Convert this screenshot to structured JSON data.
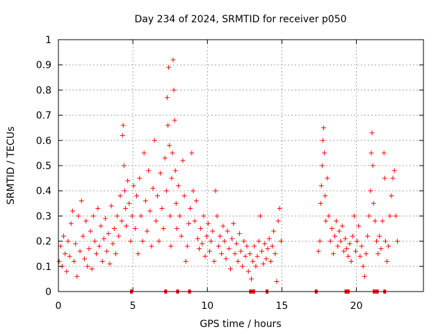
{
  "chart_data": {
    "type": "scatter",
    "title": "Day 234 of 2024, SRMTID for receiver p050",
    "xlabel": "GPS time / hours",
    "ylabel": "SRMTID / TECUs",
    "xlim": [
      0,
      24.5
    ],
    "ylim": [
      0,
      1
    ],
    "x_ticks": [
      0,
      5,
      10,
      15,
      20
    ],
    "x_tick_labels": [
      "0",
      "5",
      "10",
      "15",
      "20"
    ],
    "y_ticks": [
      0,
      0.1,
      0.2,
      0.3,
      0.4,
      0.5,
      0.6,
      0.7,
      0.8,
      0.9,
      1
    ],
    "y_tick_labels": [
      "0",
      "0.1",
      "0.2",
      "0.3",
      "0.4",
      "0.5",
      "0.6",
      "0.7",
      "0.8",
      "0.9",
      "1"
    ],
    "grid": true,
    "marker_color": "#ff0000",
    "series": [
      {
        "name": "SRMTID",
        "marker": "+",
        "points": [
          [
            0.05,
            0.12
          ],
          [
            0.15,
            0.18
          ],
          [
            0.25,
            0.1
          ],
          [
            0.35,
            0.22
          ],
          [
            0.45,
            0.15
          ],
          [
            0.55,
            0.08
          ],
          [
            0.65,
            0.2
          ],
          [
            0.75,
            0.14
          ],
          [
            0.85,
            0.27
          ],
          [
            0.95,
            0.32
          ],
          [
            1.05,
            0.12
          ],
          [
            1.15,
            0.19
          ],
          [
            1.25,
            0.06
          ],
          [
            1.35,
            0.3
          ],
          [
            1.45,
            0.16
          ],
          [
            1.55,
            0.36
          ],
          [
            1.65,
            0.22
          ],
          [
            1.75,
            0.13
          ],
          [
            1.85,
            0.28
          ],
          [
            1.95,
            0.1
          ],
          [
            2.05,
            0.17
          ],
          [
            2.15,
            0.24
          ],
          [
            2.25,
            0.09
          ],
          [
            2.35,
            0.3
          ],
          [
            2.45,
            0.2
          ],
          [
            2.55,
            0.15
          ],
          [
            2.65,
            0.33
          ],
          [
            2.75,
            0.18
          ],
          [
            2.85,
            0.26
          ],
          [
            2.95,
            0.12
          ],
          [
            3.05,
            0.21
          ],
          [
            3.15,
            0.29
          ],
          [
            3.25,
            0.16
          ],
          [
            3.35,
            0.23
          ],
          [
            3.45,
            0.11
          ],
          [
            3.55,
            0.34
          ],
          [
            3.65,
            0.19
          ],
          [
            3.75,
            0.25
          ],
          [
            3.85,
            0.15
          ],
          [
            3.95,
            0.3
          ],
          [
            4.05,
            0.22
          ],
          [
            4.15,
            0.38
          ],
          [
            4.25,
            0.28
          ],
          [
            4.3,
            0.62
          ],
          [
            4.35,
            0.66
          ],
          [
            4.4,
            0.5
          ],
          [
            4.45,
            0.4
          ],
          [
            4.5,
            0.33
          ],
          [
            4.55,
            0.26
          ],
          [
            4.65,
            0.44
          ],
          [
            4.75,
            0.35
          ],
          [
            4.85,
            0.2
          ],
          [
            4.95,
            0.3
          ],
          [
            5.05,
            0.42
          ],
          [
            5.15,
            0.25
          ],
          [
            5.25,
            0.38
          ],
          [
            5.35,
            0.15
          ],
          [
            5.45,
            0.45
          ],
          [
            5.55,
            0.3
          ],
          [
            5.65,
            0.2
          ],
          [
            5.75,
            0.55
          ],
          [
            5.85,
            0.36
          ],
          [
            5.95,
            0.24
          ],
          [
            6.05,
            0.48
          ],
          [
            6.15,
            0.32
          ],
          [
            6.25,
            0.18
          ],
          [
            6.35,
            0.41
          ],
          [
            6.45,
            0.6
          ],
          [
            6.55,
            0.28
          ],
          [
            6.65,
            0.38
          ],
          [
            6.75,
            0.2
          ],
          [
            6.85,
            0.47
          ],
          [
            6.95,
            0.33
          ],
          [
            7.05,
            0.25
          ],
          [
            7.15,
            0.53
          ],
          [
            7.25,
            0.4
          ],
          [
            7.3,
            0.77
          ],
          [
            7.35,
            0.66
          ],
          [
            7.4,
            0.89
          ],
          [
            7.45,
            0.58
          ],
          [
            7.5,
            0.3
          ],
          [
            7.55,
            0.18
          ],
          [
            7.6,
            0.45
          ],
          [
            7.65,
            0.55
          ],
          [
            7.7,
            0.92
          ],
          [
            7.75,
            0.8
          ],
          [
            7.8,
            0.68
          ],
          [
            7.85,
            0.48
          ],
          [
            7.9,
            0.35
          ],
          [
            7.95,
            0.25
          ],
          [
            8.05,
            0.42
          ],
          [
            8.15,
            0.3
          ],
          [
            8.25,
            0.22
          ],
          [
            8.35,
            0.52
          ],
          [
            8.45,
            0.38
          ],
          [
            8.55,
            0.12
          ],
          [
            8.65,
            0.18
          ],
          [
            8.75,
            0.27
          ],
          [
            8.85,
            0.33
          ],
          [
            8.95,
            0.55
          ],
          [
            9.05,
            0.4
          ],
          [
            9.15,
            0.28
          ],
          [
            9.25,
            0.36
          ],
          [
            9.35,
            0.21
          ],
          [
            9.45,
            0.17
          ],
          [
            9.55,
            0.25
          ],
          [
            9.65,
            0.19
          ],
          [
            9.75,
            0.3
          ],
          [
            9.85,
            0.14
          ],
          [
            9.95,
            0.22
          ],
          [
            10.05,
            0.27
          ],
          [
            10.15,
            0.16
          ],
          [
            10.25,
            0.2
          ],
          [
            10.35,
            0.24
          ],
          [
            10.45,
            0.12
          ],
          [
            10.55,
            0.4
          ],
          [
            10.65,
            0.3
          ],
          [
            10.75,
            0.18
          ],
          [
            10.85,
            0.22
          ],
          [
            10.95,
            0.15
          ],
          [
            11.05,
            0.26
          ],
          [
            11.15,
            0.2
          ],
          [
            11.25,
            0.13
          ],
          [
            11.35,
            0.24
          ],
          [
            11.45,
            0.17
          ],
          [
            11.55,
            0.09
          ],
          [
            11.65,
            0.21
          ],
          [
            11.75,
            0.27
          ],
          [
            11.85,
            0.15
          ],
          [
            11.95,
            0.19
          ],
          [
            12.05,
            0.12
          ],
          [
            12.15,
            0.23
          ],
          [
            12.25,
            0.16
          ],
          [
            12.35,
            0.1
          ],
          [
            12.45,
            0.2
          ],
          [
            12.55,
            0.14
          ],
          [
            12.65,
            0.18
          ],
          [
            12.75,
            0.08
          ],
          [
            12.85,
            0.15
          ],
          [
            12.95,
            0.05
          ],
          [
            13.05,
            0.12
          ],
          [
            13.15,
            0.18
          ],
          [
            13.25,
            0.1
          ],
          [
            13.35,
            0.14
          ],
          [
            13.45,
            0.2
          ],
          [
            13.55,
            0.3
          ],
          [
            13.65,
            0.16
          ],
          [
            13.75,
            0.11
          ],
          [
            13.85,
            0.19
          ],
          [
            13.95,
            0.13
          ],
          [
            14.05,
            0.17
          ],
          [
            14.15,
            0.21
          ],
          [
            14.25,
            0.12
          ],
          [
            14.35,
            0.18
          ],
          [
            14.45,
            0.24
          ],
          [
            14.55,
            0.15
          ],
          [
            14.65,
            0.04
          ],
          [
            14.75,
            0.28
          ],
          [
            14.85,
            0.33
          ],
          [
            14.95,
            0.2
          ],
          [
            17.45,
            0.16
          ],
          [
            17.55,
            0.2
          ],
          [
            17.6,
            0.35
          ],
          [
            17.65,
            0.42
          ],
          [
            17.7,
            0.5
          ],
          [
            17.75,
            0.6
          ],
          [
            17.8,
            0.65
          ],
          [
            17.85,
            0.55
          ],
          [
            17.9,
            0.38
          ],
          [
            17.95,
            0.28
          ],
          [
            18.05,
            0.45
          ],
          [
            18.15,
            0.3
          ],
          [
            18.25,
            0.2
          ],
          [
            18.35,
            0.25
          ],
          [
            18.45,
            0.15
          ],
          [
            18.55,
            0.22
          ],
          [
            18.65,
            0.28
          ],
          [
            18.75,
            0.18
          ],
          [
            18.85,
            0.24
          ],
          [
            18.95,
            0.2
          ],
          [
            19.05,
            0.26
          ],
          [
            19.15,
            0.16
          ],
          [
            19.25,
            0.21
          ],
          [
            19.35,
            0.17
          ],
          [
            19.45,
            0.14
          ],
          [
            19.55,
            0.19
          ],
          [
            19.65,
            0.12
          ],
          [
            19.75,
            0.22
          ],
          [
            19.85,
            0.3
          ],
          [
            19.95,
            0.16
          ],
          [
            20.05,
            0.2
          ],
          [
            20.15,
            0.26
          ],
          [
            20.25,
            0.14
          ],
          [
            20.35,
            0.18
          ],
          [
            20.45,
            0.1
          ],
          [
            20.55,
            0.06
          ],
          [
            20.65,
            0.15
          ],
          [
            20.75,
            0.22
          ],
          [
            20.85,
            0.3
          ],
          [
            20.95,
            0.4
          ],
          [
            21.0,
            0.55
          ],
          [
            21.05,
            0.63
          ],
          [
            21.1,
            0.5
          ],
          [
            21.15,
            0.35
          ],
          [
            21.25,
            0.28
          ],
          [
            21.35,
            0.2
          ],
          [
            21.45,
            0.15
          ],
          [
            21.55,
            0.22
          ],
          [
            21.65,
            0.17
          ],
          [
            21.75,
            0.28
          ],
          [
            21.85,
            0.55
          ],
          [
            21.9,
            0.45
          ],
          [
            21.95,
            0.2
          ],
          [
            22.05,
            0.12
          ],
          [
            22.15,
            0.18
          ],
          [
            22.25,
            0.3
          ],
          [
            22.35,
            0.38
          ],
          [
            22.45,
            0.45
          ],
          [
            22.55,
            0.48
          ],
          [
            22.65,
            0.3
          ],
          [
            22.75,
            0.2
          ]
        ]
      }
    ],
    "bottom_markers_x": [
      4.9,
      7.2,
      8.0,
      8.8,
      12.9,
      13.1,
      14.0,
      17.3,
      19.3,
      19.45,
      21.2,
      21.4,
      21.9
    ]
  }
}
